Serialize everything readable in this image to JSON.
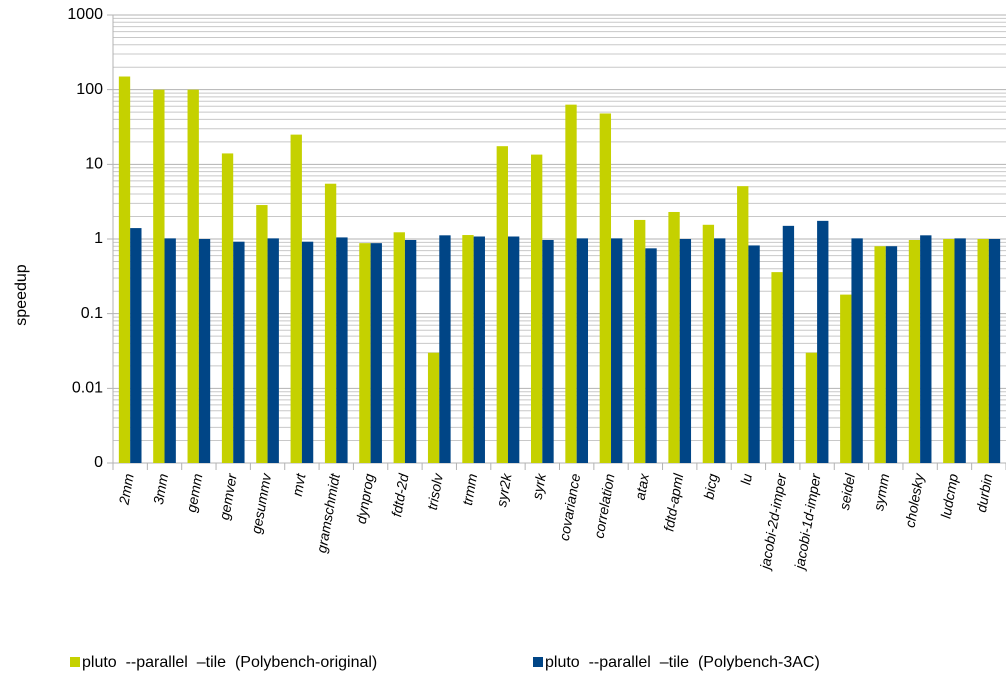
{
  "chart_data": {
    "type": "bar",
    "y_label": "speedup",
    "log_scale": true,
    "grid": true,
    "minor_grid": true,
    "legend": "bottom",
    "categories": [
      "2mm",
      "3mm",
      "gemm",
      "gemver",
      "gesummv",
      "mvt",
      "gramschmidt",
      "dynprog",
      "fdtd-2d",
      "trisolv",
      "trmm",
      "syr2k",
      "syrk",
      "covariance",
      "correlation",
      "atax",
      "fdtd-apml",
      "bicg",
      "lu",
      "jacobi-2d-imper",
      "jacobi-1d-imper",
      "seidel",
      "symm",
      "cholesky",
      "ludcmp",
      "durbin"
    ],
    "series": [
      {
        "name": "pluto  --parallel  –tile  (Polybench-original)",
        "color": "#c5d100",
        "values": [
          150,
          100,
          100,
          14,
          2.85,
          25,
          5.5,
          0.88,
          1.23,
          0.03,
          1.13,
          17.5,
          13.5,
          63,
          48,
          1.8,
          2.3,
          1.55,
          5.1,
          0.36,
          0.03,
          0.18,
          0.8,
          0.97,
          1.0,
          1.0
        ]
      },
      {
        "name": "pluto  --parallel  –tile  (Polybench-3AC)",
        "color": "#004586",
        "values": [
          1.4,
          1.02,
          1.0,
          0.92,
          1.02,
          0.92,
          1.05,
          0.88,
          0.97,
          1.12,
          1.08,
          1.08,
          0.97,
          1.02,
          1.02,
          0.75,
          1.0,
          1.02,
          0.82,
          1.5,
          1.75,
          1.02,
          0.8,
          1.12,
          1.02,
          1.0
        ]
      }
    ],
    "ylim": [
      0.001,
      1000
    ],
    "yticks": [
      {
        "value": 0.001,
        "label": "0"
      },
      0.01,
      0.1,
      1,
      10,
      100,
      1000
    ]
  }
}
